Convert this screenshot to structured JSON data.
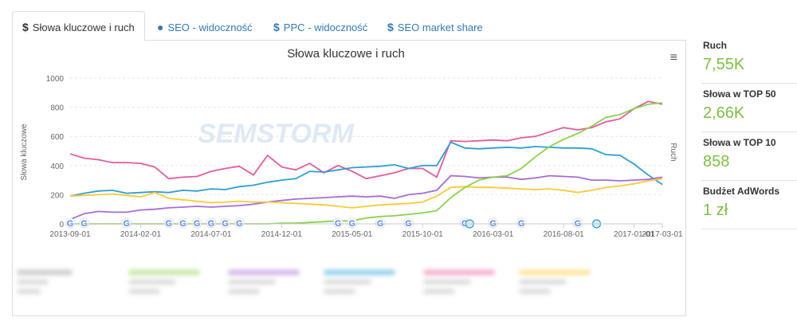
{
  "tabs": [
    {
      "icon": "$",
      "label": "Słowa kluczowe i ruch"
    },
    {
      "icon": "●",
      "label": "SEO - widoczność"
    },
    {
      "icon": "$",
      "label": "PPC - widoczność"
    },
    {
      "icon": "$",
      "label": "SEO market share"
    }
  ],
  "watermark": "SEMSTORM",
  "metrics": [
    {
      "label": "Ruch",
      "value": "7,55K"
    },
    {
      "label": "Słowa w TOP 50",
      "value": "2,66K"
    },
    {
      "label": "Słowa w TOP 10",
      "value": "858"
    },
    {
      "label": "Budżet AdWords",
      "value": "1 zł"
    }
  ],
  "chart_data": {
    "type": "line",
    "title": "Słowa kluczowe i ruch",
    "ylabel": "Słowa kluczowe",
    "y2label": "Ruch",
    "ylim": [
      0,
      1000
    ],
    "yticks": [
      0,
      200,
      400,
      600,
      800,
      1000
    ],
    "xticks": [
      "2013-09-01",
      "2014-02-01",
      "2014-07-01",
      "2014-12-01",
      "2015-05-01",
      "2015-10-01",
      "2016-03-01",
      "2016-08-01",
      "2017-01-01",
      "2017-03-01"
    ],
    "x": [
      "2013-09",
      "2013-10",
      "2013-11",
      "2013-12",
      "2014-01",
      "2014-02",
      "2014-03",
      "2014-04",
      "2014-05",
      "2014-06",
      "2014-07",
      "2014-08",
      "2014-09",
      "2014-10",
      "2014-11",
      "2014-12",
      "2015-01",
      "2015-02",
      "2015-03",
      "2015-04",
      "2015-05",
      "2015-06",
      "2015-07",
      "2015-08",
      "2015-09",
      "2015-10",
      "2015-11",
      "2015-12",
      "2016-01",
      "2016-02",
      "2016-03",
      "2016-04",
      "2016-05",
      "2016-06",
      "2016-07",
      "2016-08",
      "2016-09",
      "2016-10",
      "2016-11",
      "2016-12",
      "2017-01",
      "2017-02",
      "2017-03"
    ],
    "series": [
      {
        "color": "#e85a9c",
        "values": [
          480,
          450,
          440,
          420,
          420,
          415,
          390,
          310,
          320,
          325,
          360,
          380,
          395,
          335,
          470,
          390,
          370,
          415,
          350,
          400,
          360,
          310,
          330,
          350,
          380,
          380,
          320,
          570,
          565,
          570,
          575,
          570,
          590,
          600,
          630,
          660,
          645,
          660,
          700,
          720,
          790,
          840,
          820
        ]
      },
      {
        "color": "#2a9fd6",
        "values": [
          190,
          210,
          225,
          230,
          210,
          215,
          220,
          215,
          230,
          225,
          240,
          235,
          255,
          265,
          285,
          300,
          310,
          360,
          355,
          370,
          385,
          390,
          395,
          405,
          380,
          400,
          400,
          560,
          520,
          515,
          520,
          525,
          520,
          530,
          525,
          520,
          520,
          515,
          475,
          470,
          410,
          335,
          270
        ]
      },
      {
        "color": "#a76cdb",
        "values": [
          30,
          70,
          85,
          80,
          80,
          95,
          100,
          110,
          115,
          120,
          115,
          120,
          125,
          135,
          150,
          160,
          170,
          175,
          180,
          185,
          190,
          185,
          190,
          175,
          200,
          210,
          230,
          330,
          325,
          315,
          320,
          320,
          305,
          315,
          330,
          325,
          320,
          300,
          300,
          295,
          300,
          305,
          320
        ]
      },
      {
        "color": "#ffc933",
        "values": [
          190,
          195,
          200,
          205,
          195,
          185,
          215,
          175,
          165,
          155,
          145,
          150,
          155,
          150,
          150,
          145,
          140,
          135,
          130,
          120,
          110,
          120,
          130,
          135,
          140,
          150,
          190,
          250,
          255,
          250,
          250,
          245,
          240,
          235,
          240,
          230,
          215,
          230,
          250,
          260,
          275,
          295,
          310
        ]
      },
      {
        "color": "#8bd34a",
        "values": [
          0,
          0,
          0,
          0,
          0,
          0,
          0,
          0,
          0,
          0,
          0,
          0,
          0,
          0,
          0,
          5,
          5,
          10,
          15,
          20,
          20,
          40,
          50,
          55,
          65,
          75,
          90,
          180,
          250,
          300,
          320,
          330,
          380,
          460,
          530,
          580,
          620,
          670,
          730,
          750,
          790,
          820,
          830
        ]
      }
    ]
  }
}
